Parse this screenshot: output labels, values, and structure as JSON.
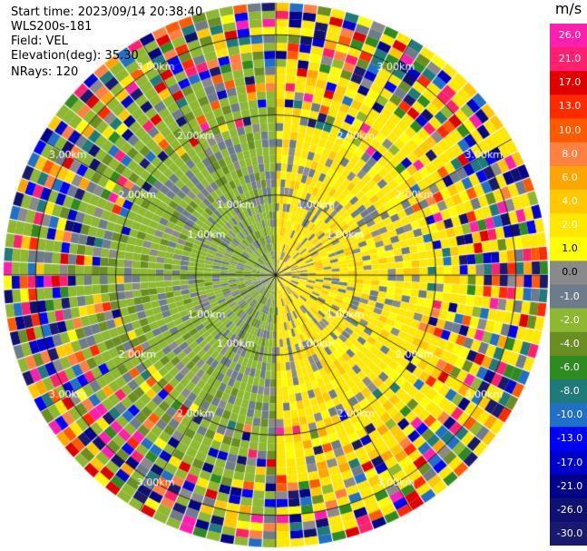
{
  "header": {
    "start_time": "Start time: 2023/09/14 20:38:40",
    "instrument": "WLS200s-181",
    "field": "Field: VEL",
    "elevation": "Elevation(deg): 35.30",
    "nrays": "NRays: 120"
  },
  "chart_data": {
    "type": "heatmap",
    "subtype": "polar-ppi",
    "field": "VEL",
    "units": "m/s",
    "nrays": 120,
    "range_rings_km": [
      1.0,
      2.0,
      3.0
    ],
    "range_ring_labels": [
      "1.00km",
      "2.00km",
      "3.00km"
    ],
    "max_range_km": 3.4,
    "colorbar": {
      "unit": "m/s",
      "tick_labels": [
        "26.0",
        "21.0",
        "17.0",
        "13.0",
        "10.0",
        "8.0",
        "6.0",
        "4.0",
        "2.0",
        "1.0",
        "0.0",
        "-1.0",
        "-2.0",
        "-4.0",
        "-6.0",
        "-8.0",
        "-10.0",
        "-13.0",
        "-17.0",
        "-21.0",
        "-26.0",
        "-30.0"
      ],
      "colors": [
        "#ff1fae",
        "#ff2070",
        "#e00000",
        "#ff2a00",
        "#ff5a00",
        "#ff8040",
        "#ffa500",
        "#ffc800",
        "#ffe800",
        "#ffff00",
        "#8a8a8a",
        "#6e7b8b",
        "#8db830",
        "#6b8e23",
        "#2e8b20",
        "#1f7a7a",
        "#2070c8",
        "#0000ff",
        "#0000cd",
        "#00008b",
        "#101070",
        "#191970"
      ]
    },
    "sectors": [
      {
        "azimuth_deg": [
          300,
          360
        ],
        "dominant": "-2.0",
        "note": "olive green"
      },
      {
        "azimuth_deg": [
          0,
          60
        ],
        "dominant": "2.0"
      },
      {
        "azimuth_deg": [
          60,
          180
        ],
        "dominant": "2.0"
      },
      {
        "azimuth_deg": [
          180,
          300
        ],
        "dominant": "-2.0"
      }
    ]
  }
}
